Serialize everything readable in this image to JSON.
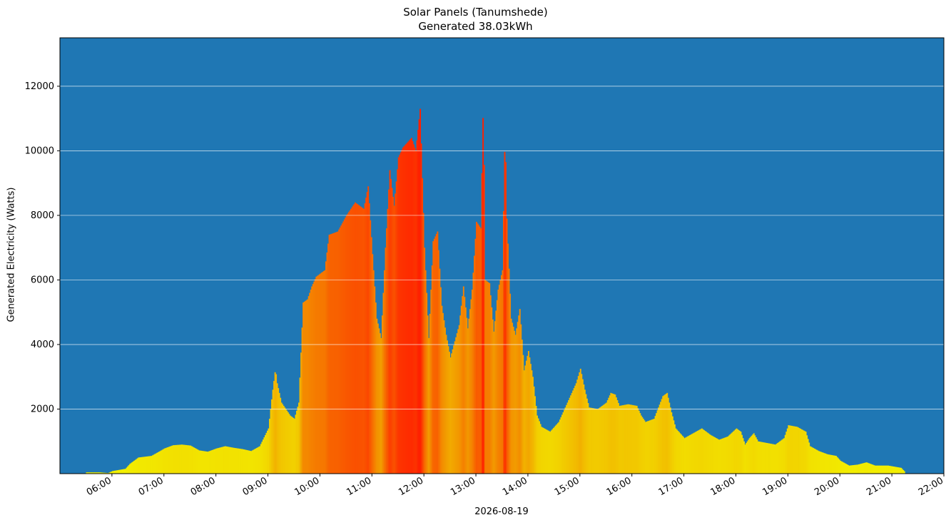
{
  "chart_data": {
    "type": "bar",
    "title": "Solar Panels (Tanumshede)",
    "subtitle": "Generated 38.03kWh",
    "xlabel": "2026-08-19",
    "ylabel": "Generated Electricity (Watts)",
    "background_color": "#1f77b4",
    "grid": "horizontal",
    "grid_color": "#ffffff",
    "color_scale": {
      "low": "#f2f200",
      "mid": "#f29a00",
      "high": "#ff2000"
    },
    "x_ticks": [
      "06:00",
      "07:00",
      "08:00",
      "09:00",
      "10:00",
      "11:00",
      "12:00",
      "13:00",
      "14:00",
      "15:00",
      "16:00",
      "17:00",
      "18:00",
      "19:00",
      "20:00",
      "21:00",
      "22:00"
    ],
    "y_ticks": [
      2000,
      4000,
      6000,
      8000,
      10000,
      12000
    ],
    "xlim": [
      "05:00",
      "22:00"
    ],
    "ylim": [
      0,
      13500
    ],
    "series": [
      {
        "points": [
          [
            "05:30",
            40
          ],
          [
            "05:45",
            40
          ],
          [
            "05:55",
            20
          ],
          [
            "06:00",
            80
          ],
          [
            "06:15",
            150
          ],
          [
            "06:20",
            300
          ],
          [
            "06:30",
            500
          ],
          [
            "06:45",
            550
          ],
          [
            "06:55",
            700
          ],
          [
            "07:00",
            780
          ],
          [
            "07:10",
            880
          ],
          [
            "07:20",
            900
          ],
          [
            "07:30",
            870
          ],
          [
            "07:40",
            720
          ],
          [
            "07:50",
            680
          ],
          [
            "08:00",
            780
          ],
          [
            "08:10",
            850
          ],
          [
            "08:20",
            800
          ],
          [
            "08:30",
            760
          ],
          [
            "08:40",
            700
          ],
          [
            "08:50",
            850
          ],
          [
            "09:00",
            1400
          ],
          [
            "09:05",
            2600
          ],
          [
            "09:08",
            3250
          ],
          [
            "09:10",
            2800
          ],
          [
            "09:15",
            2200
          ],
          [
            "09:25",
            1800
          ],
          [
            "09:30",
            1700
          ],
          [
            "09:35",
            2200
          ],
          [
            "09:40",
            5300
          ],
          [
            "09:45",
            5400
          ],
          [
            "09:50",
            5800
          ],
          [
            "09:55",
            6100
          ],
          [
            "10:05",
            6300
          ],
          [
            "10:10",
            7400
          ],
          [
            "10:20",
            7500
          ],
          [
            "10:30",
            8000
          ],
          [
            "10:40",
            8400
          ],
          [
            "10:50",
            8200
          ],
          [
            "10:55",
            8900
          ],
          [
            "11:00",
            6800
          ],
          [
            "11:05",
            4800
          ],
          [
            "11:10",
            4200
          ],
          [
            "11:15",
            7000
          ],
          [
            "11:20",
            9400
          ],
          [
            "11:25",
            8300
          ],
          [
            "11:30",
            9800
          ],
          [
            "11:35",
            10100
          ],
          [
            "11:45",
            10400
          ],
          [
            "11:50",
            10000
          ],
          [
            "11:55",
            11300
          ],
          [
            "12:00",
            7000
          ],
          [
            "12:05",
            4200
          ],
          [
            "12:10",
            7200
          ],
          [
            "12:15",
            7500
          ],
          [
            "12:20",
            5200
          ],
          [
            "12:25",
            4300
          ],
          [
            "12:30",
            3600
          ],
          [
            "12:40",
            4600
          ],
          [
            "12:45",
            5800
          ],
          [
            "12:50",
            4500
          ],
          [
            "12:55",
            5700
          ],
          [
            "13:00",
            7800
          ],
          [
            "13:05",
            7600
          ],
          [
            "13:08",
            11700
          ],
          [
            "13:10",
            6000
          ],
          [
            "13:15",
            5900
          ],
          [
            "13:20",
            4400
          ],
          [
            "13:25",
            5700
          ],
          [
            "13:30",
            6300
          ],
          [
            "13:33",
            10700
          ],
          [
            "13:35",
            7900
          ],
          [
            "13:40",
            4800
          ],
          [
            "13:45",
            4300
          ],
          [
            "13:50",
            5100
          ],
          [
            "13:55",
            3200
          ],
          [
            "14:00",
            3800
          ],
          [
            "14:05",
            3000
          ],
          [
            "14:10",
            1800
          ],
          [
            "14:15",
            1450
          ],
          [
            "14:25",
            1300
          ],
          [
            "14:35",
            1600
          ],
          [
            "14:45",
            2200
          ],
          [
            "14:55",
            2800
          ],
          [
            "15:00",
            3250
          ],
          [
            "15:05",
            2600
          ],
          [
            "15:10",
            2050
          ],
          [
            "15:20",
            2000
          ],
          [
            "15:30",
            2200
          ],
          [
            "15:35",
            2500
          ],
          [
            "15:40",
            2450
          ],
          [
            "15:45",
            2100
          ],
          [
            "15:55",
            2150
          ],
          [
            "16:05",
            2100
          ],
          [
            "16:10",
            1800
          ],
          [
            "16:15",
            1600
          ],
          [
            "16:25",
            1700
          ],
          [
            "16:35",
            2400
          ],
          [
            "16:40",
            2500
          ],
          [
            "16:45",
            1900
          ],
          [
            "16:50",
            1400
          ],
          [
            "17:00",
            1100
          ],
          [
            "17:10",
            1250
          ],
          [
            "17:20",
            1400
          ],
          [
            "17:30",
            1200
          ],
          [
            "17:40",
            1050
          ],
          [
            "17:50",
            1150
          ],
          [
            "18:00",
            1400
          ],
          [
            "18:05",
            1300
          ],
          [
            "18:10",
            900
          ],
          [
            "18:15",
            1100
          ],
          [
            "18:20",
            1250
          ],
          [
            "18:25",
            1000
          ],
          [
            "18:35",
            950
          ],
          [
            "18:45",
            900
          ],
          [
            "18:55",
            1100
          ],
          [
            "19:00",
            1500
          ],
          [
            "19:10",
            1450
          ],
          [
            "19:20",
            1300
          ],
          [
            "19:25",
            850
          ],
          [
            "19:35",
            700
          ],
          [
            "19:45",
            600
          ],
          [
            "19:55",
            550
          ],
          [
            "20:00",
            400
          ],
          [
            "20:10",
            250
          ],
          [
            "20:20",
            280
          ],
          [
            "20:30",
            350
          ],
          [
            "20:40",
            250
          ],
          [
            "20:55",
            250
          ],
          [
            "21:10",
            180
          ],
          [
            "21:15",
            40
          ]
        ]
      }
    ]
  }
}
